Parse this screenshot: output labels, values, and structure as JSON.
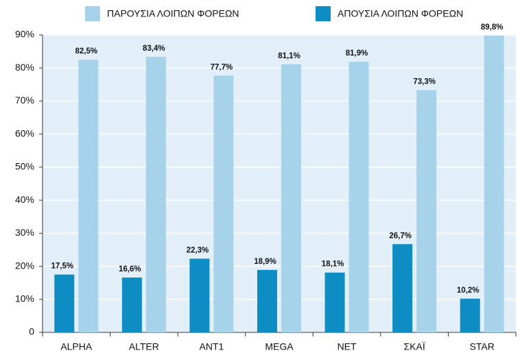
{
  "chart_data": {
    "type": "bar",
    "categories": [
      "ALPHA",
      "ALTER",
      "ANT1",
      "MEGA",
      "NET",
      "ΣΚΑΪ",
      "STAR"
    ],
    "series": [
      {
        "name": "ΠΑΡΟΥΣΙΑ ΛΟΙΠΩΝ ΦΟΡΕΩΝ",
        "color": "#a6d3ea",
        "values": [
          82.5,
          83.4,
          77.7,
          81.1,
          81.9,
          73.3,
          89.8
        ],
        "value_labels": [
          "82,5%",
          "83,4%",
          "77,7%",
          "81,1%",
          "81,9%",
          "73,3%",
          "89,8%"
        ]
      },
      {
        "name": "ΑΠΟΥΣΙΑ ΛΟΙΠΩΝ ΦΟΡΕΩΝ",
        "color": "#0e8cc4",
        "values": [
          17.5,
          16.6,
          22.3,
          18.9,
          18.1,
          26.7,
          10.2
        ],
        "value_labels": [
          "17,5%",
          "16,6%",
          "22,3%",
          "18,9%",
          "18,1%",
          "26,7%",
          "10,2%"
        ]
      }
    ],
    "ylim": [
      0,
      90
    ],
    "yticks": [
      0,
      {
        "value": 10,
        "label": "10%"
      },
      {
        "value": 20,
        "label": "20%"
      },
      {
        "value": 30,
        "label": "30%"
      },
      {
        "value": 40,
        "label": "40%"
      },
      {
        "value": 50,
        "label": "50%"
      },
      {
        "value": 60,
        "label": "60%"
      },
      {
        "value": 70,
        "label": "70%"
      },
      {
        "value": 80,
        "label": "80%"
      },
      {
        "value": 90,
        "label": "90%"
      }
    ],
    "grid": true
  }
}
